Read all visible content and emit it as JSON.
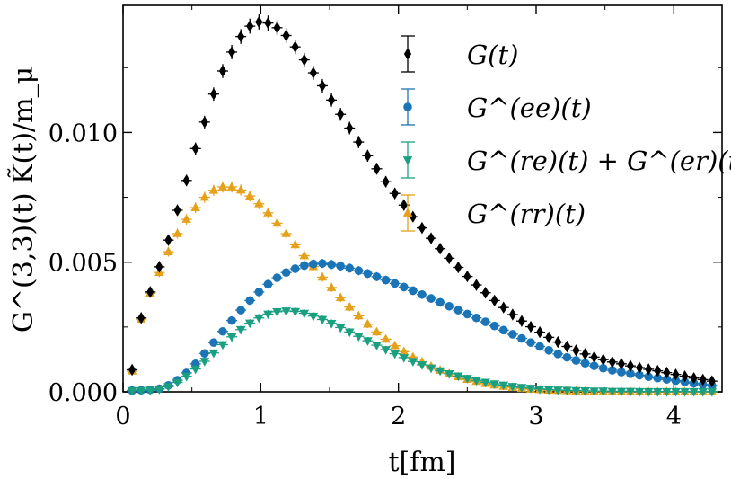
{
  "chart_data": {
    "type": "scatter",
    "xlabel": "t[fm]",
    "ylabel": "G^(3,3)(t) K̃(t)/m_μ",
    "xlim": [
      0,
      4.35
    ],
    "ylim": [
      0,
      0.0149
    ],
    "x_ticks": [
      0,
      1,
      2,
      3,
      4
    ],
    "x_tick_labels": [
      "0",
      "1",
      "2",
      "3",
      "4"
    ],
    "y_ticks": [
      0.0,
      0.005,
      0.01
    ],
    "y_tick_labels": [
      "0.000",
      "0.005",
      "0.010"
    ],
    "legend_position": "top-right",
    "legend": [
      "G(t)",
      "G^(ee)(t)",
      "G^(re)(t) + G^(er)(t)",
      "G^(rr)(t)"
    ],
    "x": [
      0.0658,
      0.1316,
      0.1974,
      0.2632,
      0.329,
      0.3948,
      0.4606,
      0.5264,
      0.5922,
      0.658,
      0.7238,
      0.7896,
      0.8554,
      0.9212,
      0.987,
      1.0528,
      1.1186,
      1.1844,
      1.2502,
      1.316,
      1.3818,
      1.4476,
      1.5134,
      1.5792,
      1.645,
      1.7108,
      1.7766,
      1.8424,
      1.9082,
      1.974,
      2.0398,
      2.1056,
      2.1714,
      2.2372,
      2.303,
      2.3688,
      2.4346,
      2.5004,
      2.5662,
      2.632,
      2.6978,
      2.7636,
      2.8294,
      2.8952,
      2.961,
      3.0268,
      3.0926,
      3.1584,
      3.2242,
      3.29,
      3.3558,
      3.4216,
      3.4874,
      3.5532,
      3.619,
      3.6848,
      3.7506,
      3.8164,
      3.8822,
      3.948,
      4.0138,
      4.0796,
      4.1454,
      4.2112,
      4.277
    ],
    "series": [
      {
        "name": "G(t)",
        "color": "#000000",
        "marker": "diamond",
        "values": [
          0.00085,
          0.00285,
          0.00385,
          0.00482,
          0.00585,
          0.007,
          0.00815,
          0.00938,
          0.0104,
          0.01148,
          0.01237,
          0.0131,
          0.0137,
          0.0141,
          0.01426,
          0.01422,
          0.01404,
          0.01374,
          0.0133,
          0.0128,
          0.0123,
          0.0118,
          0.01125,
          0.0107,
          0.01017,
          0.00963,
          0.0091,
          0.0086,
          0.0081,
          0.00765,
          0.0072,
          0.00675,
          0.00632,
          0.00592,
          0.00552,
          0.00515,
          0.0048,
          0.00445,
          0.00412,
          0.00382,
          0.00352,
          0.00325,
          0.00298,
          0.00273,
          0.00251,
          0.0023,
          0.0021,
          0.00192,
          0.00175,
          0.0016,
          0.00146,
          0.00134,
          0.00124,
          0.00115,
          0.00108,
          0.001,
          0.00093,
          0.00087,
          0.00081,
          0.00074,
          0.00067,
          0.0006,
          0.00053,
          0.00047,
          0.00041
        ]
      },
      {
        "name": "G^(ee)(t)",
        "color": "#1a74b5",
        "marker": "circle",
        "values": [
          5e-05,
          6e-05,
          8e-05,
          0.00012,
          0.00025,
          0.00045,
          0.00073,
          0.00108,
          0.00148,
          0.0019,
          0.00233,
          0.00275,
          0.00315,
          0.00352,
          0.00385,
          0.00415,
          0.0044,
          0.0046,
          0.00475,
          0.00487,
          0.00493,
          0.00495,
          0.00491,
          0.00485,
          0.00477,
          0.00467,
          0.00456,
          0.00444,
          0.00431,
          0.00418,
          0.00404,
          0.0039,
          0.00375,
          0.0036,
          0.00345,
          0.0033,
          0.00315,
          0.003,
          0.00285,
          0.0027,
          0.00254,
          0.00238,
          0.00222,
          0.00206,
          0.0019,
          0.00175,
          0.0016,
          0.00146,
          0.00133,
          0.00121,
          0.0011,
          0.001,
          0.00091,
          0.00083,
          0.00076,
          0.0007,
          0.00064,
          0.00058,
          0.00053,
          0.00048,
          0.00043,
          0.00038,
          0.00033,
          0.00028,
          0.00024
        ]
      },
      {
        "name": "G^(re)(t) + G^(er)(t)",
        "color": "#1aa081",
        "marker": "triangle-down",
        "values": [
          5e-05,
          5e-05,
          6e-05,
          0.0001,
          0.0002,
          0.00037,
          0.0006,
          0.00088,
          0.00118,
          0.0015,
          0.00182,
          0.00212,
          0.0024,
          0.00265,
          0.00285,
          0.003,
          0.00309,
          0.00312,
          0.0031,
          0.00303,
          0.00292,
          0.00279,
          0.00264,
          0.00248,
          0.00231,
          0.00214,
          0.00197,
          0.0018,
          0.00163,
          0.00147,
          0.00132,
          0.00117,
          0.00104,
          0.00092,
          0.00081,
          0.0007,
          0.00061,
          0.00052,
          0.00044,
          0.00037,
          0.00031,
          0.00026,
          0.00021,
          0.00017,
          0.00014,
          0.00011,
          9e-05,
          7e-05,
          6e-05,
          5e-05,
          4e-05,
          3e-05,
          3e-05,
          2e-05,
          2e-05,
          2e-05,
          1e-05,
          1e-05,
          1e-05,
          1e-05,
          1e-05,
          1e-05,
          1e-05,
          1e-05,
          1e-05
        ]
      },
      {
        "name": "G^(rr)(t)",
        "color": "#e5a11a",
        "marker": "triangle-up",
        "values": [
          0.0008,
          0.0028,
          0.0038,
          0.0046,
          0.0054,
          0.0061,
          0.00665,
          0.0071,
          0.0075,
          0.00777,
          0.0079,
          0.0079,
          0.00778,
          0.00755,
          0.00725,
          0.0069,
          0.0065,
          0.0061,
          0.00567,
          0.00525,
          0.00483,
          0.00442,
          0.00402,
          0.00363,
          0.00327,
          0.00293,
          0.00261,
          0.00231,
          0.00203,
          0.00178,
          0.00155,
          0.00134,
          0.00115,
          0.00098,
          0.00083,
          0.0007,
          0.00058,
          0.00048,
          0.0004,
          0.00032,
          0.00026,
          0.00021,
          0.00017,
          0.00013,
          0.0001,
          8e-05,
          6e-05,
          5e-05,
          4e-05,
          3e-05,
          2e-05,
          2e-05,
          1e-05,
          1e-05,
          1e-05,
          1e-05,
          1e-05,
          0.0,
          0.0,
          0.0,
          0.0,
          0.0,
          0.0,
          0.0,
          0.0
        ]
      }
    ]
  }
}
